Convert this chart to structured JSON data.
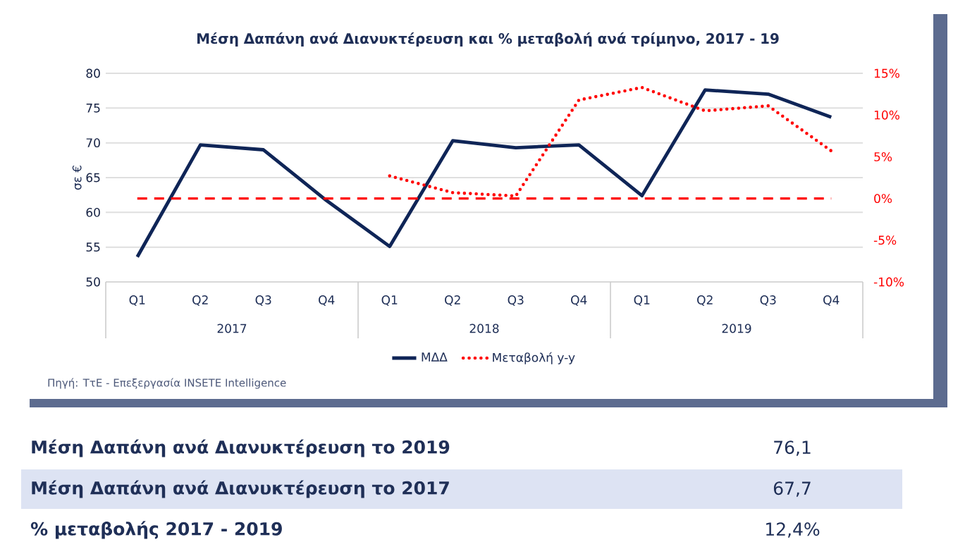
{
  "chart_data": {
    "type": "line",
    "title": "Μέση Δαπάνη ανά Διανυκτέρευση και % μεταβολή ανά τρίμηνο, 2017 - 19",
    "ylabel": "σε €",
    "categories": [
      "Q1",
      "Q2",
      "Q3",
      "Q4",
      "Q1",
      "Q2",
      "Q3",
      "Q4",
      "Q1",
      "Q2",
      "Q3",
      "Q4"
    ],
    "series": [
      {
        "name": "ΜΔΔ",
        "color": "#0f2557",
        "line_style": "solid",
        "values": [
          53.6,
          69.7,
          69.0,
          61.7,
          55.1,
          70.3,
          69.3,
          69.7,
          62.4,
          77.6,
          77.0,
          73.7
        ]
      },
      {
        "name": "Μεταβολή y-y",
        "color": "#ff0000",
        "line_style": "dotted",
        "axis": "y2",
        "values": [
          null,
          null,
          null,
          null,
          2.7,
          0.7,
          0.3,
          11.8,
          13.3,
          10.5,
          11.1,
          5.7
        ]
      }
    ],
    "ylim": [
      50,
      80
    ],
    "yticks": [
      50,
      55,
      60,
      65,
      70,
      75,
      80
    ],
    "y2lim": [
      -10,
      15
    ],
    "y2ticks": [
      {
        "value": -10,
        "label": "-10%"
      },
      {
        "value": -5,
        "label": "-5%"
      },
      {
        "value": 0,
        "label": "0%"
      },
      {
        "value": 5,
        "label": "5%"
      },
      {
        "value": 10,
        "label": "10%"
      },
      {
        "value": 15,
        "label": "15%"
      }
    ],
    "ref_lines": [
      {
        "axis": "y2",
        "value": 0,
        "color": "#ff0000",
        "line_style": "dashed"
      }
    ],
    "grid": "y",
    "legend": "bottom",
    "marker": "none",
    "annotations": [
      "2017",
      "2018",
      "2019",
      "Πηγή: ΤτΕ - Επεξεργασία INSETE Intelligence",
      "Μέση Δαπάνη ανά Διανυκτέρευση το 2019",
      "76,1",
      "Μέση Δαπάνη ανά Διανυκτέρευση το 2017",
      "67,7",
      "% μεταβολής 2017 - 2019",
      "12,4%"
    ]
  }
}
